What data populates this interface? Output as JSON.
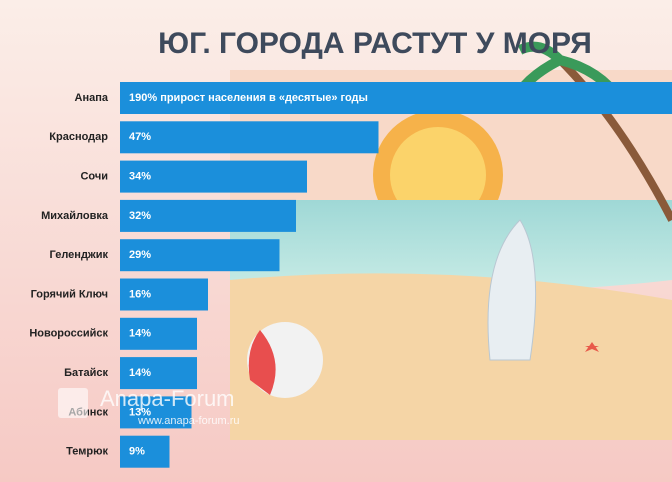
{
  "chart_data": {
    "type": "bar",
    "orientation": "horizontal",
    "title": "ЮГ.  ГОРОДА  РАСТУТ  У  МОРЯ",
    "categories": [
      "Анапа",
      "Краснодар",
      "Сочи",
      "Михайловка",
      "Геленджик",
      "Горячий Ключ",
      "Новороссийск",
      "Батайск",
      "Абинск",
      "Темрюк"
    ],
    "values": [
      190,
      47,
      34,
      32,
      29,
      16,
      14,
      14,
      13,
      9
    ],
    "value_labels": [
      "190% прирост населения  в «десятые» годы",
      "47%",
      "34%",
      "32%",
      "29%",
      "16%",
      "14%",
      "14%",
      "13%",
      "9%"
    ],
    "color": "#1b8fdb",
    "watermark": {
      "title": "Anapa-Forum",
      "url": "www.anapa-forum.ru"
    }
  }
}
